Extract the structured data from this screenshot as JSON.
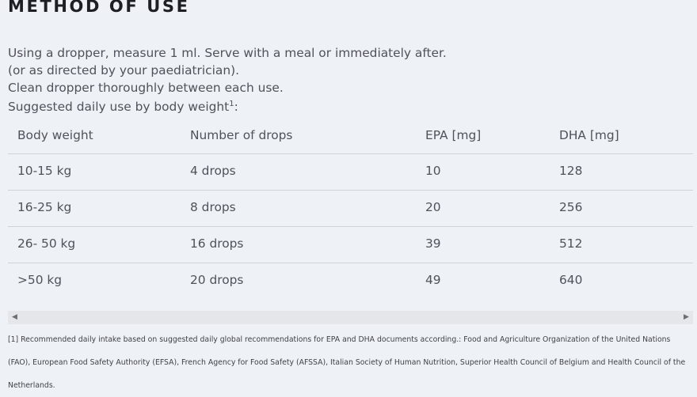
{
  "heading": "METHOD OF USE",
  "intro": [
    "Using a dropper, measure 1 ml. Serve with a meal or immediately after.",
    "(or as directed by your paediatrician).",
    "Clean dropper thoroughly between each use."
  ],
  "suggested_label": "Suggested daily use by body weight",
  "suggested_footnote_ref": "1",
  "suggested_colon": ":",
  "table": {
    "headers": [
      "Body weight",
      "Number of drops",
      "EPA [mg]",
      "DHA [mg]"
    ],
    "rows": [
      [
        "10-15 kg",
        "4 drops",
        "10",
        "128"
      ],
      [
        "16-25 kg",
        "8 drops",
        "20",
        "256"
      ],
      [
        "26- 50 kg",
        "16 drops",
        "39",
        "512"
      ],
      [
        ">50 kg",
        "20 drops",
        "49",
        "640"
      ]
    ]
  },
  "scrollbar": {
    "left_icon": "triangle-left-icon",
    "right_icon": "triangle-right-icon"
  },
  "footnote": "[1] Recommended daily intake based on suggested daily global recommendations for EPA and DHA documents according.: Food and Agriculture Organization of the United Nations (FAO), European Food Safety Authority (EFSA), French Agency for Food Safety (AFSSA), Italian Society of Human Nutrition, Superior Health Council of Belgium and Health Council of the Netherlands."
}
